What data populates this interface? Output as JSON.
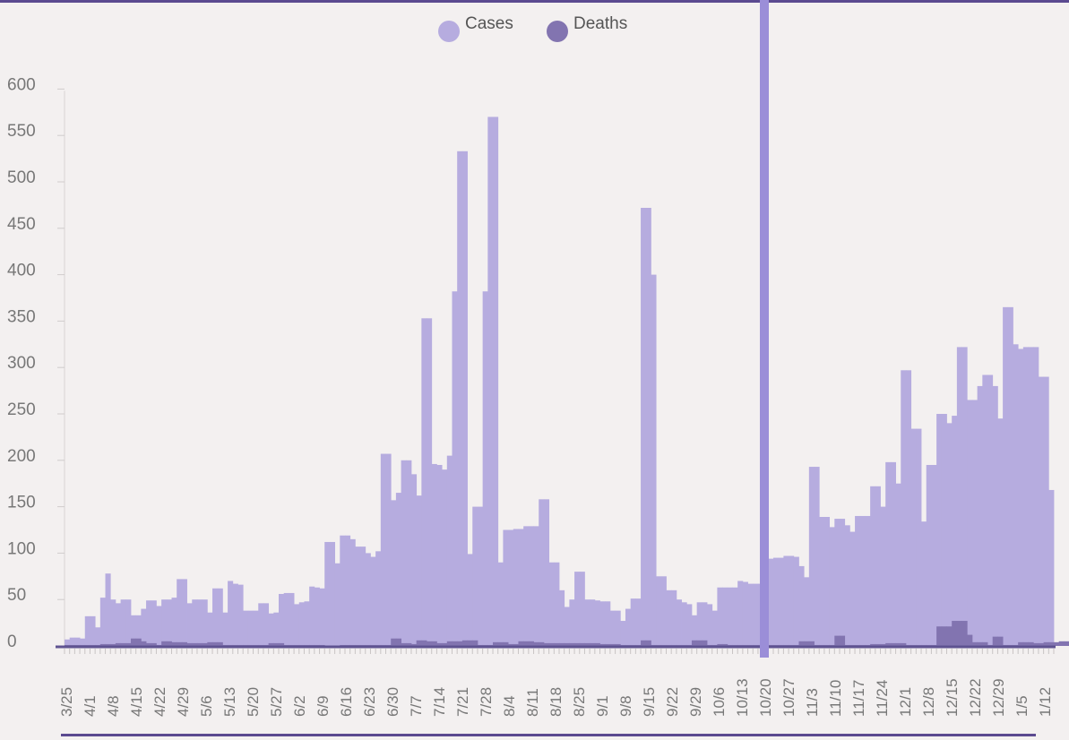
{
  "colors": {
    "cases": "#b6acdf",
    "deaths": "#8274b0",
    "highlight": "#9b8ed8",
    "rule": "#5b4a90",
    "axis_text": "#777777"
  },
  "legend": [
    {
      "label": "Cases",
      "color": "#b6acdf"
    },
    {
      "label": "Deaths",
      "color": "#8274b0"
    }
  ],
  "chart_data": {
    "type": "bar",
    "ylim": [
      0,
      600
    ],
    "yticks": [
      0,
      50,
      100,
      150,
      200,
      250,
      300,
      350,
      400,
      450,
      500,
      550,
      600
    ],
    "grid": false,
    "legend_position": "top-center",
    "x_tick_labels": [
      "3/25",
      "4/1",
      "4/8",
      "4/15",
      "4/22",
      "4/29",
      "5/6",
      "5/13",
      "5/20",
      "5/27",
      "6/2",
      "6/9",
      "6/16",
      "6/23",
      "6/30",
      "7/7",
      "7/14",
      "7/21",
      "7/28",
      "8/4",
      "8/11",
      "8/18",
      "8/25",
      "9/1",
      "9/8",
      "9/15",
      "9/22",
      "9/29",
      "10/6",
      "10/13",
      "10/20",
      "10/27",
      "11/3",
      "11/10",
      "11/17",
      "11/24",
      "12/1",
      "12/8",
      "12/15",
      "12/22",
      "12/29",
      "1/5",
      "1/12"
    ],
    "highlight_date": "10/20",
    "series": [
      {
        "name": "Cases",
        "values": [
          7,
          9,
          9,
          8,
          32,
          32,
          20,
          52,
          78,
          50,
          46,
          50,
          50,
          33,
          33,
          40,
          49,
          49,
          43,
          50,
          50,
          52,
          72,
          72,
          46,
          50,
          50,
          50,
          36,
          62,
          62,
          36,
          70,
          67,
          66,
          38,
          38,
          38,
          46,
          46,
          35,
          36,
          56,
          57,
          57,
          45,
          47,
          48,
          64,
          63,
          62,
          112,
          112,
          89,
          119,
          119,
          115,
          107,
          107,
          100,
          96,
          102,
          207,
          207,
          157,
          165,
          200,
          200,
          185,
          162,
          353,
          353,
          196,
          195,
          190,
          205,
          382,
          533,
          533,
          99,
          150,
          150,
          382,
          570,
          570,
          90,
          125,
          125,
          126,
          126,
          129,
          129,
          129,
          158,
          158,
          90,
          90,
          60,
          42,
          50,
          80,
          80,
          50,
          50,
          49,
          48,
          48,
          38,
          38,
          27,
          40,
          51,
          51,
          472,
          472,
          400,
          75,
          75,
          60,
          60,
          50,
          47,
          45,
          33,
          47,
          47,
          45,
          38,
          63,
          63,
          63,
          63,
          70,
          69,
          67,
          67,
          67,
          83,
          94,
          95,
          95,
          97,
          97,
          96,
          86,
          74,
          193,
          193,
          139,
          139,
          128,
          137,
          137,
          130,
          123,
          140,
          140,
          140,
          172,
          172,
          150,
          198,
          198,
          175,
          297,
          297,
          234,
          234,
          134,
          195,
          195,
          250,
          250,
          240,
          248,
          322,
          322,
          265,
          265,
          280,
          292,
          292,
          280,
          245,
          365,
          365,
          325,
          320,
          322,
          322,
          322,
          290,
          290,
          168
        ]
      },
      {
        "name": "Deaths",
        "values": [
          1,
          1,
          1,
          1,
          1,
          1,
          1,
          2,
          2,
          2,
          3,
          3,
          3,
          8,
          8,
          5,
          3,
          3,
          1,
          5,
          5,
          4,
          4,
          4,
          3,
          3,
          3,
          3,
          4,
          4,
          4,
          1,
          1,
          1,
          1,
          1,
          1,
          1,
          1,
          1,
          3,
          3,
          3,
          1,
          1,
          1,
          1,
          1,
          1,
          1,
          1,
          0,
          0,
          0,
          1,
          1,
          1,
          1,
          1,
          1,
          1,
          1,
          1,
          1,
          8,
          8,
          3,
          3,
          2,
          6,
          6,
          5,
          5,
          3,
          3,
          5,
          5,
          5,
          6,
          6,
          6,
          1,
          1,
          1,
          4,
          4,
          4,
          2,
          2,
          5,
          5,
          5,
          4,
          4,
          3,
          3,
          3,
          3,
          3,
          3,
          3,
          3,
          3,
          3,
          3,
          2,
          2,
          2,
          2,
          1,
          1,
          1,
          1,
          6,
          6,
          1,
          1,
          1,
          1,
          1,
          1,
          1,
          1,
          6,
          6,
          6,
          1,
          1,
          2,
          2,
          1,
          1,
          1,
          1,
          1,
          1,
          1,
          1,
          1,
          1,
          1,
          1,
          1,
          1,
          5,
          5,
          5,
          1,
          1,
          1,
          1,
          11,
          11,
          1,
          1,
          1,
          1,
          1,
          2,
          2,
          2,
          3,
          3,
          3,
          3,
          1,
          1,
          1,
          1,
          1,
          1,
          21,
          21,
          21,
          27,
          27,
          27,
          12,
          4,
          4,
          4,
          1,
          10,
          10,
          1,
          1,
          1,
          4,
          4,
          4,
          3,
          3,
          4,
          4,
          4,
          5,
          5,
          5,
          1
        ]
      }
    ]
  }
}
